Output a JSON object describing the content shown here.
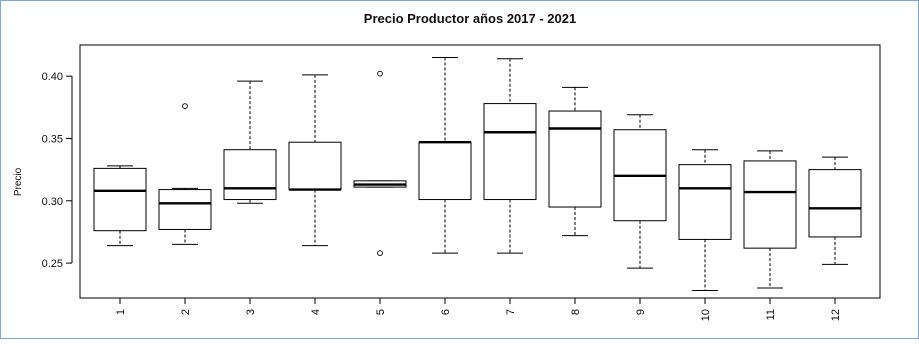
{
  "chart_data": {
    "type": "boxplot",
    "title": "Precio Productor años 2017 - 2021",
    "xlabel": "",
    "ylabel": "Precio",
    "ylim": [
      0.222,
      0.425
    ],
    "yticks": [
      "0.25",
      "0.30",
      "0.35",
      "0.40"
    ],
    "categories": [
      "1",
      "2",
      "3",
      "4",
      "5",
      "6",
      "7",
      "8",
      "9",
      "10",
      "11",
      "12"
    ],
    "boxes": [
      {
        "category": "1",
        "whisker_low": 0.264,
        "q1": 0.276,
        "median": 0.308,
        "q3": 0.326,
        "whisker_high": 0.328,
        "outliers": []
      },
      {
        "category": "2",
        "whisker_low": 0.265,
        "q1": 0.277,
        "median": 0.298,
        "q3": 0.309,
        "whisker_high": 0.31,
        "outliers": [
          0.376
        ]
      },
      {
        "category": "3",
        "whisker_low": 0.298,
        "q1": 0.301,
        "median": 0.31,
        "q3": 0.341,
        "whisker_high": 0.396,
        "outliers": []
      },
      {
        "category": "4",
        "whisker_low": 0.264,
        "q1": 0.309,
        "median": 0.309,
        "q3": 0.347,
        "whisker_high": 0.401,
        "outliers": []
      },
      {
        "category": "5",
        "whisker_low": 0.311,
        "q1": 0.311,
        "median": 0.313,
        "q3": 0.316,
        "whisker_high": 0.316,
        "outliers": [
          0.402,
          0.258
        ]
      },
      {
        "category": "6",
        "whisker_low": 0.258,
        "q1": 0.301,
        "median": 0.347,
        "q3": 0.347,
        "whisker_high": 0.415,
        "outliers": []
      },
      {
        "category": "7",
        "whisker_low": 0.258,
        "q1": 0.301,
        "median": 0.355,
        "q3": 0.378,
        "whisker_high": 0.414,
        "outliers": []
      },
      {
        "category": "8",
        "whisker_low": 0.272,
        "q1": 0.295,
        "median": 0.358,
        "q3": 0.372,
        "whisker_high": 0.391,
        "outliers": []
      },
      {
        "category": "9",
        "whisker_low": 0.246,
        "q1": 0.284,
        "median": 0.32,
        "q3": 0.357,
        "whisker_high": 0.369,
        "outliers": []
      },
      {
        "category": "10",
        "whisker_low": 0.228,
        "q1": 0.269,
        "median": 0.31,
        "q3": 0.329,
        "whisker_high": 0.341,
        "outliers": []
      },
      {
        "category": "11",
        "whisker_low": 0.23,
        "q1": 0.262,
        "median": 0.307,
        "q3": 0.332,
        "whisker_high": 0.34,
        "outliers": []
      },
      {
        "category": "12",
        "whisker_low": 0.249,
        "q1": 0.271,
        "median": 0.294,
        "q3": 0.325,
        "whisker_high": 0.335,
        "outliers": []
      }
    ],
    "grid": false,
    "legend": "none",
    "colors": {
      "box_fill": "#ffffff",
      "stroke": "#000000",
      "frame": "#7fa7d6"
    }
  }
}
